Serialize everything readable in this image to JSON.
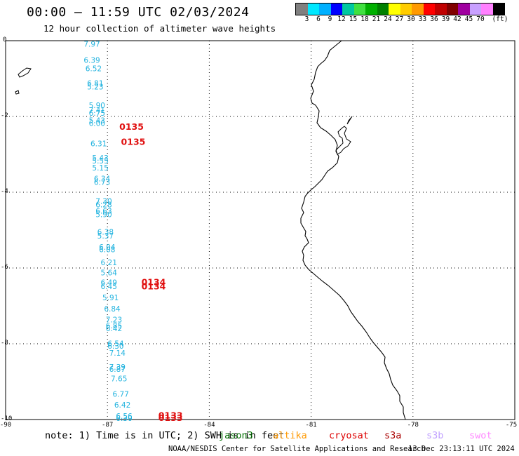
{
  "header": {
    "title": "00:00 — 11:59 UTC 02/03/2024",
    "subtitle": "12 hour collection of altimeter wave heights"
  },
  "legend": {
    "unit": "(ft)",
    "swatches": [
      {
        "color": "#808080",
        "label": ""
      },
      {
        "color": "#00e8ff",
        "label": "3"
      },
      {
        "color": "#00b0ff",
        "label": "6"
      },
      {
        "color": "#0000ff",
        "label": "9"
      },
      {
        "color": "#00c8a0",
        "label": "12"
      },
      {
        "color": "#40e040",
        "label": "15"
      },
      {
        "color": "#00b000",
        "label": "18"
      },
      {
        "color": "#008000",
        "label": "21"
      },
      {
        "color": "#ffff00",
        "label": "24"
      },
      {
        "color": "#ffcc00",
        "label": "27"
      },
      {
        "color": "#ff9900",
        "label": "30"
      },
      {
        "color": "#ff0000",
        "label": "33"
      },
      {
        "color": "#c00000",
        "label": "36"
      },
      {
        "color": "#800000",
        "label": "39"
      },
      {
        "color": "#a000a0",
        "label": "42"
      },
      {
        "color": "#c8a0ff",
        "label": "45"
      },
      {
        "color": "#ff80ff",
        "label": "70"
      },
      {
        "color": "#000000",
        "label": ""
      }
    ]
  },
  "axes": {
    "lat_labels": [
      "0",
      "-2",
      "-4",
      "-6",
      "-8",
      "-10"
    ],
    "lon_labels": [
      "-90",
      "-87",
      "-84",
      "-81",
      "-78",
      "-75"
    ]
  },
  "wave_heights": [
    {
      "text": "7.97",
      "lon": -87.7,
      "lat": -0.08
    },
    {
      "text": "6.39",
      "lon": -87.7,
      "lat": -0.51
    },
    {
      "text": "6.52",
      "lon": -87.65,
      "lat": -0.73
    },
    {
      "text": "6.81",
      "lon": -87.6,
      "lat": -1.12
    },
    {
      "text": "5.23",
      "lon": -87.6,
      "lat": -1.21
    },
    {
      "text": "5.90",
      "lon": -87.55,
      "lat": -1.7
    },
    {
      "text": "7.41",
      "lon": -87.55,
      "lat": -1.83
    },
    {
      "text": "6.75",
      "lon": -87.55,
      "lat": -1.91
    },
    {
      "text": "5.43",
      "lon": -87.55,
      "lat": -2.1
    },
    {
      "text": "6.00",
      "lon": -87.55,
      "lat": -2.18
    },
    {
      "text": "6.31",
      "lon": -87.5,
      "lat": -2.71
    },
    {
      "text": "5.43",
      "lon": -87.45,
      "lat": -3.09
    },
    {
      "text": "5.55",
      "lon": -87.45,
      "lat": -3.17
    },
    {
      "text": "5.15",
      "lon": -87.45,
      "lat": -3.35
    },
    {
      "text": "6.34",
      "lon": -87.4,
      "lat": -3.64
    },
    {
      "text": "6.73",
      "lon": -87.4,
      "lat": -3.73
    },
    {
      "text": "7.30",
      "lon": -87.35,
      "lat": -4.23
    },
    {
      "text": "6.28",
      "lon": -87.35,
      "lat": -4.32
    },
    {
      "text": "6.63",
      "lon": -87.35,
      "lat": -4.49
    },
    {
      "text": "5.90",
      "lon": -87.35,
      "lat": -4.58
    },
    {
      "text": "6.38",
      "lon": -87.3,
      "lat": -5.05
    },
    {
      "text": "5.37",
      "lon": -87.3,
      "lat": -5.15
    },
    {
      "text": "6.04",
      "lon": -87.25,
      "lat": -5.44
    },
    {
      "text": "6.08",
      "lon": -87.25,
      "lat": -5.51
    },
    {
      "text": "6.21",
      "lon": -87.2,
      "lat": -5.85
    },
    {
      "text": "5.64",
      "lon": -87.2,
      "lat": -6.12
    },
    {
      "text": "6.49",
      "lon": -87.2,
      "lat": -6.38
    },
    {
      "text": "6.45",
      "lon": -87.2,
      "lat": -6.48
    },
    {
      "text": "5.91",
      "lon": -87.15,
      "lat": -6.78
    },
    {
      "text": "6.84",
      "lon": -87.1,
      "lat": -7.07
    },
    {
      "text": "7.23",
      "lon": -87.05,
      "lat": -7.36
    },
    {
      "text": "6.85",
      "lon": -87.05,
      "lat": -7.52
    },
    {
      "text": "6.42",
      "lon": -87.05,
      "lat": -7.59
    },
    {
      "text": "6.54",
      "lon": -87.0,
      "lat": -7.99
    },
    {
      "text": "6.30",
      "lon": -87.0,
      "lat": -8.06
    },
    {
      "text": "7.14",
      "lon": -86.95,
      "lat": -8.24
    },
    {
      "text": "7.39",
      "lon": -86.95,
      "lat": -8.61
    },
    {
      "text": "6.87",
      "lon": -86.95,
      "lat": -8.67
    },
    {
      "text": "7.65",
      "lon": -86.9,
      "lat": -8.92
    },
    {
      "text": "6.77",
      "lon": -86.85,
      "lat": -9.32
    },
    {
      "text": "6.42",
      "lon": -86.8,
      "lat": -9.61
    },
    {
      "text": "6.56",
      "lon": -86.75,
      "lat": -9.91
    },
    {
      "text": "6.30",
      "lon": -86.75,
      "lat": -9.96
    }
  ],
  "pass_labels": [
    {
      "text": "0135",
      "lon": -86.65,
      "lat": -2.28
    },
    {
      "text": "0135",
      "lon": -86.6,
      "lat": -2.68
    },
    {
      "text": "0134",
      "lon": -86.0,
      "lat": -6.38
    },
    {
      "text": "0134",
      "lon": -86.0,
      "lat": -6.49
    },
    {
      "text": "0133",
      "lon": -85.5,
      "lat": -9.9
    },
    {
      "text": "0133",
      "lon": -85.5,
      "lat": -9.96
    }
  ],
  "note": {
    "text": "note: 1) Time is in UTC; 2) SWH is in feet",
    "satellites": [
      {
        "name": "jason3",
        "color": "#007000"
      },
      {
        "name": "altika",
        "color": "#ff9900"
      },
      {
        "name": "cryosat",
        "color": "#dd0000"
      },
      {
        "name": "s3a",
        "color": "#aa0000"
      },
      {
        "name": "s3b",
        "color": "#c0a0ff"
      },
      {
        "name": "swot",
        "color": "#ff88ff"
      }
    ]
  },
  "footer": {
    "credit": "NOAA/NESDIS Center for Satellite Applications and Research",
    "timestamp": "13 Dec 23:13:11 UTC 2024"
  }
}
